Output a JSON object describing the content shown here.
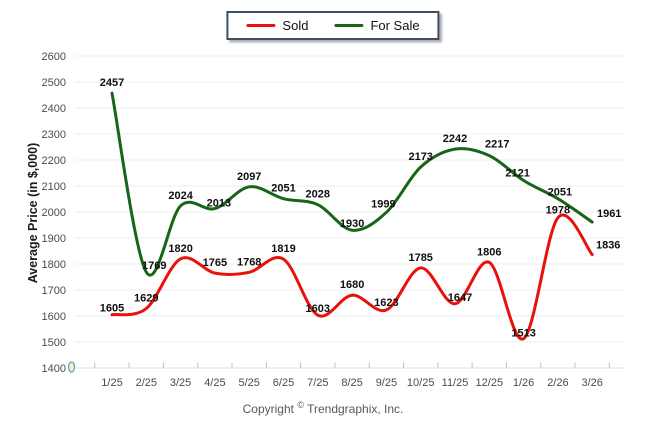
{
  "chart_data": {
    "type": "line",
    "x": [
      "1/25",
      "2/25",
      "3/25",
      "4/25",
      "5/25",
      "6/25",
      "7/25",
      "8/25",
      "9/25",
      "10/25",
      "11/25",
      "12/25",
      "1/26",
      "2/26",
      "3/26"
    ],
    "series": [
      {
        "name": "Sold",
        "color": "#e8120b",
        "values": [
          1605,
          1629,
          1820,
          1765,
          1768,
          1819,
          1603,
          1680,
          1623,
          1785,
          1647,
          1806,
          1513,
          1978,
          1836
        ]
      },
      {
        "name": "For Sale",
        "color": "#176617",
        "values": [
          2457,
          1769,
          2024,
          2013,
          2097,
          2051,
          2028,
          1930,
          1999,
          2173,
          2242,
          2217,
          2121,
          2051,
          1961
        ]
      }
    ],
    "title": "",
    "xlabel": "",
    "ylabel": "Average Price (in $,000)",
    "ylim": [
      1400,
      2600
    ],
    "ytick_step": 100,
    "grid": true,
    "curve": "smooth",
    "legend_position": "top-center",
    "data_labels": true
  },
  "footer": {
    "copyright_prefix": "Copyright",
    "copyright_symbol": "©",
    "copyright_company": "Trendgraphix, Inc."
  }
}
